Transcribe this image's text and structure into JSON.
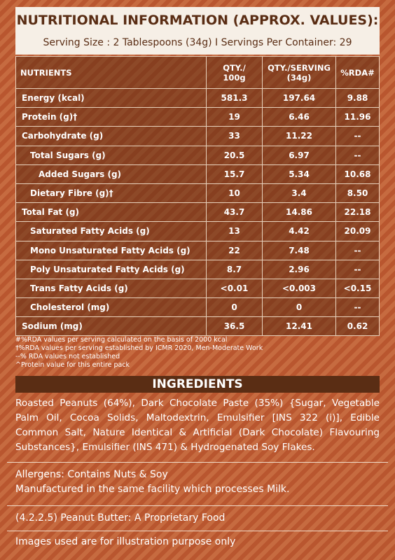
{
  "header": {
    "title": "NUTRITIONAL INFORMATION (APPROX. VALUES):",
    "serving": "Serving Size : 2 Tablespoons (34g) I Servings Per Container: 29"
  },
  "table": {
    "columns": [
      "NUTRIENTS",
      "QTY./\n100g",
      "QTY./SERVING\n(34g)",
      "%RDA#"
    ],
    "rows": [
      [
        "Energy (kcal)",
        "581.3",
        "197.64",
        "9.88"
      ],
      [
        "Protein (g)†",
        "19",
        "6.46",
        "11.96"
      ],
      [
        "Carbohydrate (g)",
        "33",
        "11.22",
        "--"
      ],
      [
        "Total Sugars (g)",
        "20.5",
        "6.97",
        "--"
      ],
      [
        "Added Sugars (g)",
        "15.7",
        "5.34",
        "10.68"
      ],
      [
        "Dietary Fibre (g)†",
        "10",
        "3.4",
        "8.50"
      ],
      [
        "Total Fat (g)",
        "43.7",
        "14.86",
        "22.18"
      ],
      [
        "Saturated Fatty Acids (g)",
        "13",
        "4.42",
        "20.09"
      ],
      [
        "Mono Unsaturated Fatty Acids (g)",
        "22",
        "7.48",
        "--"
      ],
      [
        "Poly Unsaturated Fatty Acids (g)",
        "8.7",
        "2.96",
        "--"
      ],
      [
        "Trans Fatty Acids (g)",
        "<0.01",
        "<0.003",
        "<0.15"
      ],
      [
        "Cholesterol (mg)",
        "0",
        "0",
        "--"
      ],
      [
        "Sodium (mg)",
        "36.5",
        "12.41",
        "0.62"
      ]
    ]
  },
  "footnotes": [
    "#%RDA values per serving calculated on the basis of 2000 kcal",
    "†%RDA values per serving established by ICMR 2020, Men-Moderate Work",
    "--% RDA values not established",
    "^Protein value for this entire pack"
  ],
  "ingredients": {
    "title": "INGREDIENTS",
    "text": "Roasted Peanuts (64%), Dark Chocolate Paste (35%) {Sugar, Vegetable Palm Oil, Cocoa Solids, Maltodextrin, Emulsifier [INS 322 (i)], Edible Common Salt, Nature Identical & Artificial (Dark Chocolate) Flavouring Substances}, Emulsifier (INS 471) & Hydrogenated Soy Flakes."
  },
  "allergens": [
    "Allergens: Contains Nuts & Soy",
    "Manufactured in the same facility which processes Milk."
  ],
  "classification": "(4.2.2.5) Peanut Butter: A Proprietary Food",
  "disclaimer": "Images used are for illustration purpose only"
}
